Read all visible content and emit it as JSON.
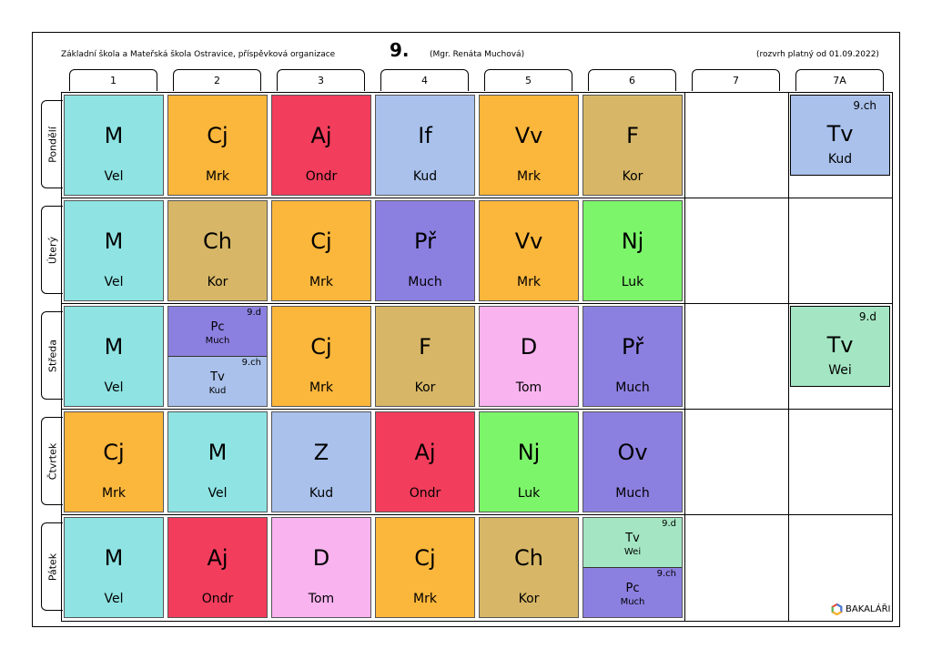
{
  "header": {
    "school": "Základní škola a Mateřská škola Ostravice, příspěvková organizace",
    "class_name": "9.",
    "class_teacher": "(Mgr. Renáta Muchová)",
    "validity": "(rozvrh platný od 01.09.2022)"
  },
  "periods": [
    "1",
    "2",
    "3",
    "4",
    "5",
    "6",
    "7",
    "7A"
  ],
  "days": [
    "Pondělí",
    "Úterý",
    "Středa",
    "Čtvrtek",
    "Pátek"
  ],
  "colors": {
    "M": "#8fe3e3",
    "Cj": "#fbb63c",
    "Aj": "#f23d5c",
    "If": "#a9c1eb",
    "Vv": "#fbb63c",
    "F": "#d7b767",
    "Ch": "#d7b767",
    "Pr": "#8b80e0",
    "Nj": "#7cf56a",
    "D": "#f9b3ef",
    "Z": "#a9c1eb",
    "Ov": "#8b80e0",
    "Tv_9ch": "#a9c1eb",
    "Tv_9d": "#a4e6c3",
    "Pc": "#8b80e0"
  },
  "lessons": {
    "mon": {
      "p1": {
        "subject": "M",
        "teacher": "Vel"
      },
      "p2": {
        "subject": "Cj",
        "teacher": "Mrk"
      },
      "p3": {
        "subject": "Aj",
        "teacher": "Ondr"
      },
      "p4": {
        "subject": "If",
        "teacher": "Kud"
      },
      "p5": {
        "subject": "Vv",
        "teacher": "Mrk"
      },
      "p6": {
        "subject": "F",
        "teacher": "Kor"
      },
      "p7a": {
        "group": "9.ch",
        "subject": "Tv",
        "teacher": "Kud"
      }
    },
    "tue": {
      "p1": {
        "subject": "M",
        "teacher": "Vel"
      },
      "p2": {
        "subject": "Ch",
        "teacher": "Kor"
      },
      "p3": {
        "subject": "Cj",
        "teacher": "Mrk"
      },
      "p4": {
        "subject": "Př",
        "teacher": "Much"
      },
      "p5": {
        "subject": "Vv",
        "teacher": "Mrk"
      },
      "p6": {
        "subject": "Nj",
        "teacher": "Luk"
      }
    },
    "wed": {
      "p1": {
        "subject": "M",
        "teacher": "Vel"
      },
      "p2_a": {
        "group": "9.d",
        "subject": "Pc",
        "teacher": "Much"
      },
      "p2_b": {
        "group": "9.ch",
        "subject": "Tv",
        "teacher": "Kud"
      },
      "p3": {
        "subject": "Cj",
        "teacher": "Mrk"
      },
      "p4": {
        "subject": "F",
        "teacher": "Kor"
      },
      "p5": {
        "subject": "D",
        "teacher": "Tom"
      },
      "p6": {
        "subject": "Př",
        "teacher": "Much"
      },
      "p7a": {
        "group": "9.d",
        "subject": "Tv",
        "teacher": "Wei"
      }
    },
    "thu": {
      "p1": {
        "subject": "Cj",
        "teacher": "Mrk"
      },
      "p2": {
        "subject": "M",
        "teacher": "Vel"
      },
      "p3": {
        "subject": "Z",
        "teacher": "Kud"
      },
      "p4": {
        "subject": "Aj",
        "teacher": "Ondr"
      },
      "p5": {
        "subject": "Nj",
        "teacher": "Luk"
      },
      "p6": {
        "subject": "Ov",
        "teacher": "Much"
      }
    },
    "fri": {
      "p1": {
        "subject": "M",
        "teacher": "Vel"
      },
      "p2": {
        "subject": "Aj",
        "teacher": "Ondr"
      },
      "p3": {
        "subject": "D",
        "teacher": "Tom"
      },
      "p4": {
        "subject": "Cj",
        "teacher": "Mrk"
      },
      "p5": {
        "subject": "Ch",
        "teacher": "Kor"
      },
      "p6_a": {
        "group": "9.d",
        "subject": "Tv",
        "teacher": "Wei"
      },
      "p6_b": {
        "group": "9.ch",
        "subject": "Pc",
        "teacher": "Much"
      }
    }
  },
  "footer": {
    "brand": "BAKALÁŘI",
    "logo_icon": "bakalari-logo-icon"
  }
}
